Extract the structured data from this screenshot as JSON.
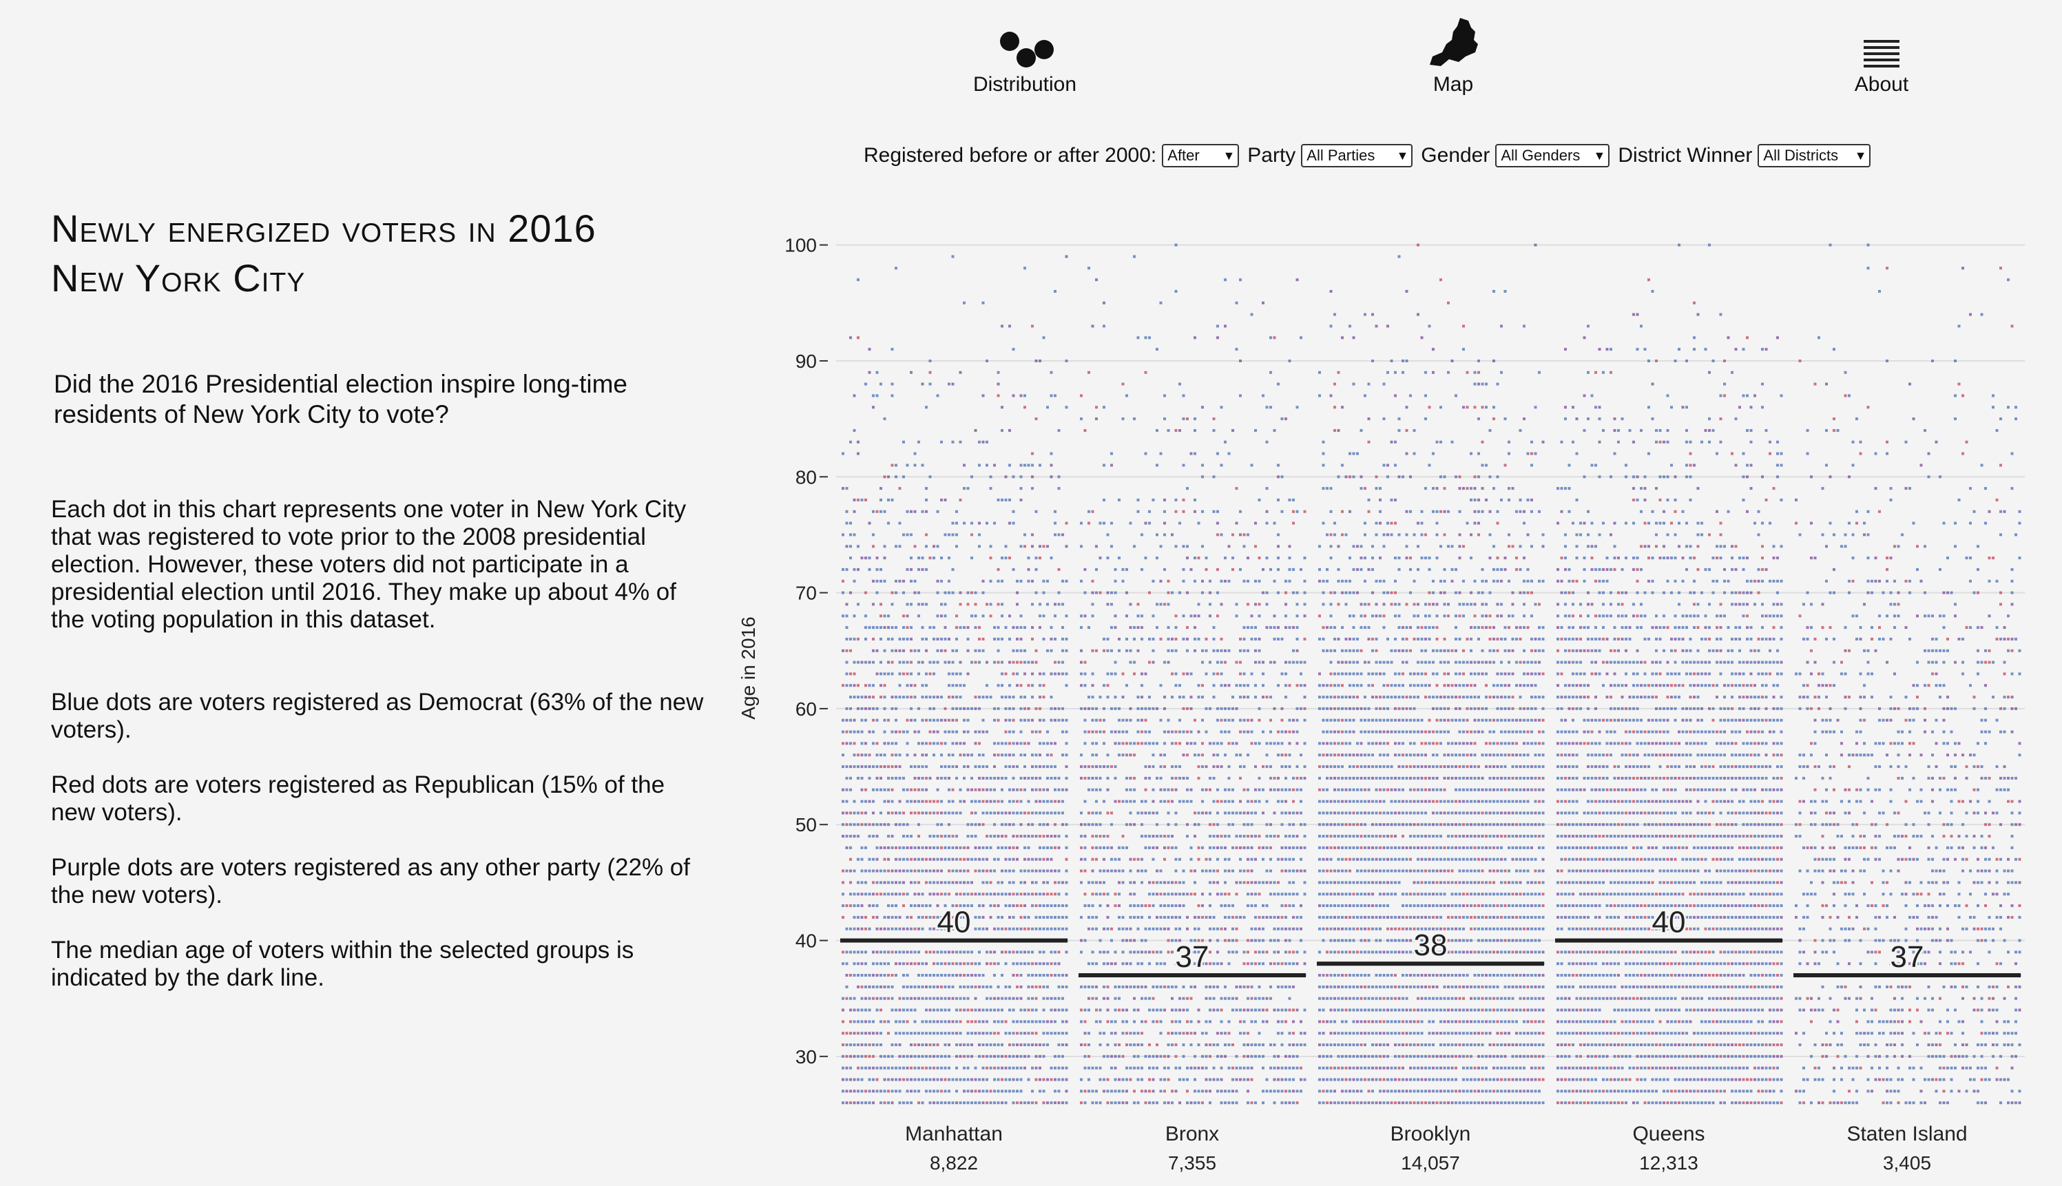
{
  "left": {
    "title_line1": "Newly energized voters in 2016",
    "title_line2": "New York City",
    "question": "Did the 2016 Presidential election inspire long-time residents of New York City to vote?",
    "paragraphs": [
      "Each dot in this chart represents one voter in New York City that was registered to vote prior to the 2008 presidential election. However, these voters did not participate in a presidential election until 2016. They make up about 4% of the voting population in this dataset.",
      "Blue dots are voters registered as Democrat (63% of the new voters).",
      "Red dots are voters registered as Republican (15% of the new voters).",
      "Purple dots are voters registered as any other party (22% of the new voters).",
      "The median age of voters within the selected groups is indicated by the dark line."
    ]
  },
  "nav": {
    "items": [
      {
        "label": "Distribution",
        "icon": "distribution-dots-icon"
      },
      {
        "label": "Map",
        "icon": "nyc-map-icon"
      },
      {
        "label": "About",
        "icon": "hamburger-menu-icon"
      }
    ]
  },
  "filters": {
    "registered_label": "Registered before or after 2000:",
    "registered_value": "After",
    "party_label": "Party",
    "party_value": "All Parties",
    "gender_label": "Gender",
    "gender_value": "All Genders",
    "district_label": "District Winner",
    "district_value": "All Districts"
  },
  "colors": {
    "democrat": "#4a6fb5",
    "republican": "#c2455a",
    "other": "#7a4a9a",
    "median_line": "#222222",
    "gridline": "#dddddd"
  },
  "chart_data": {
    "type": "scatter",
    "ylabel": "Age in 2016",
    "ylim": [
      25,
      102
    ],
    "yticks": [
      30,
      40,
      50,
      60,
      70,
      80,
      90,
      100
    ],
    "grid": true,
    "categories": [
      "Manhattan",
      "Bronx",
      "Brooklyn",
      "Queens",
      "Staten Island"
    ],
    "counts": [
      "8,822",
      "7,355",
      "14,057",
      "12,313",
      "3,405"
    ],
    "median_age": [
      40,
      37,
      38,
      40,
      37
    ],
    "median_labels": [
      "40",
      "37",
      "38",
      "40",
      "37"
    ]
  }
}
